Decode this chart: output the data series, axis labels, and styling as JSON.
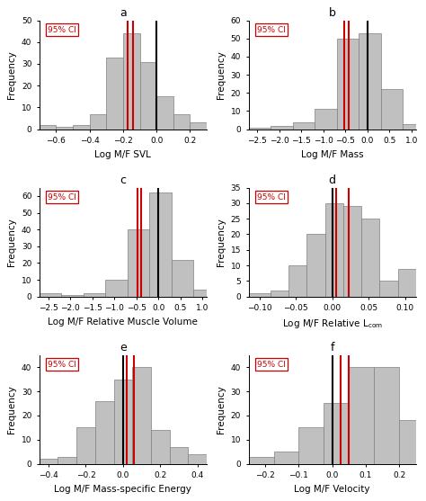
{
  "panels": [
    {
      "label": "a",
      "xlabel": "Log M/F SVL",
      "xlim": [
        -0.7,
        0.3
      ],
      "xticks": [
        -0.6,
        -0.4,
        -0.2,
        0.0,
        0.2
      ],
      "ylim": [
        0,
        50
      ],
      "yticks": [
        0,
        10,
        20,
        30,
        40,
        50
      ],
      "bin_edges": [
        -0.7,
        -0.6,
        -0.5,
        -0.4,
        -0.3,
        -0.2,
        -0.1,
        0.0,
        0.1,
        0.2,
        0.3
      ],
      "frequencies": [
        2,
        1,
        2,
        7,
        33,
        44,
        31,
        15,
        7,
        3
      ],
      "black_line": 0.0,
      "red_lines": [
        -0.175,
        -0.14
      ]
    },
    {
      "label": "b",
      "xlabel": "Log M/F Mass",
      "xlim": [
        -2.7,
        1.1
      ],
      "xticks": [
        -2.5,
        -2.0,
        -1.5,
        -1.0,
        -0.5,
        0.0,
        0.5,
        1.0
      ],
      "ylim": [
        0,
        60
      ],
      "yticks": [
        0,
        10,
        20,
        30,
        40,
        50,
        60
      ],
      "bin_edges": [
        -2.7,
        -2.2,
        -1.7,
        -1.2,
        -0.7,
        -0.2,
        0.3,
        0.8,
        1.3
      ],
      "frequencies": [
        1,
        2,
        4,
        11,
        50,
        53,
        22,
        3
      ],
      "black_line": 0.0,
      "red_lines": [
        -0.52,
        -0.43
      ]
    },
    {
      "label": "c",
      "xlabel": "Log M/F Relative Muscle Volume",
      "xlim": [
        -2.7,
        1.1
      ],
      "xticks": [
        -2.5,
        -2.0,
        -1.5,
        -1.0,
        -0.5,
        0.0,
        0.5,
        1.0
      ],
      "ylim": [
        0,
        65
      ],
      "yticks": [
        0,
        10,
        20,
        30,
        40,
        50,
        60
      ],
      "bin_edges": [
        -2.7,
        -2.2,
        -1.7,
        -1.2,
        -0.7,
        -0.2,
        0.3,
        0.8,
        1.3
      ],
      "frequencies": [
        2,
        1,
        2,
        10,
        40,
        62,
        22,
        4
      ],
      "black_line": 0.0,
      "red_lines": [
        -0.48,
        -0.38
      ]
    },
    {
      "label": "d",
      "xlabel": "Log M/F Relative L_com",
      "xlim": [
        -0.115,
        0.115
      ],
      "xticks": [
        -0.1,
        -0.05,
        0.0,
        0.05,
        0.1
      ],
      "ylim": [
        0,
        35
      ],
      "yticks": [
        0,
        5,
        10,
        15,
        20,
        25,
        30,
        35
      ],
      "bin_edges": [
        -0.115,
        -0.085,
        -0.06,
        -0.035,
        -0.01,
        0.015,
        0.04,
        0.065,
        0.09,
        0.115
      ],
      "frequencies": [
        1,
        2,
        10,
        20,
        30,
        29,
        25,
        5,
        9
      ],
      "black_line": 0.0,
      "red_lines": [
        0.005,
        0.022
      ]
    },
    {
      "label": "e",
      "xlabel": "Log M/F Mass-specific Energy",
      "xlim": [
        -0.45,
        0.45
      ],
      "xticks": [
        -0.4,
        -0.2,
        0.0,
        0.2,
        0.4
      ],
      "ylim": [
        0,
        45
      ],
      "yticks": [
        0,
        10,
        20,
        30,
        40
      ],
      "bin_edges": [
        -0.45,
        -0.35,
        -0.25,
        -0.15,
        -0.05,
        0.05,
        0.15,
        0.25,
        0.35,
        0.45
      ],
      "frequencies": [
        2,
        3,
        15,
        26,
        35,
        40,
        14,
        7,
        4
      ],
      "black_line": 0.0,
      "red_lines": [
        0.02,
        0.06
      ]
    },
    {
      "label": "f",
      "xlabel": "Log M/F Velocity",
      "xlim": [
        -0.25,
        0.25
      ],
      "xticks": [
        -0.2,
        -0.1,
        0.0,
        0.1,
        0.2
      ],
      "ylim": [
        0,
        45
      ],
      "yticks": [
        0,
        10,
        20,
        30,
        40
      ],
      "bin_edges": [
        -0.25,
        -0.175,
        -0.1,
        -0.025,
        0.05,
        0.125,
        0.2,
        0.275
      ],
      "frequencies": [
        3,
        5,
        15,
        25,
        40,
        40,
        18
      ],
      "black_line": 0.0,
      "red_lines": [
        0.025,
        0.05
      ]
    }
  ],
  "bar_color": "#c0c0c0",
  "bar_edgecolor": "#808080",
  "ci_box_color": "#ffffff",
  "ci_text_color": "#cc0000",
  "ci_box_edgecolor": "#cc0000",
  "black_line_color": "#000000",
  "red_line_color": "#cc0000",
  "ylabel": "Frequency",
  "title_fontsize": 9,
  "label_fontsize": 7.5,
  "tick_fontsize": 6.5,
  "ci_fontsize": 6.5
}
